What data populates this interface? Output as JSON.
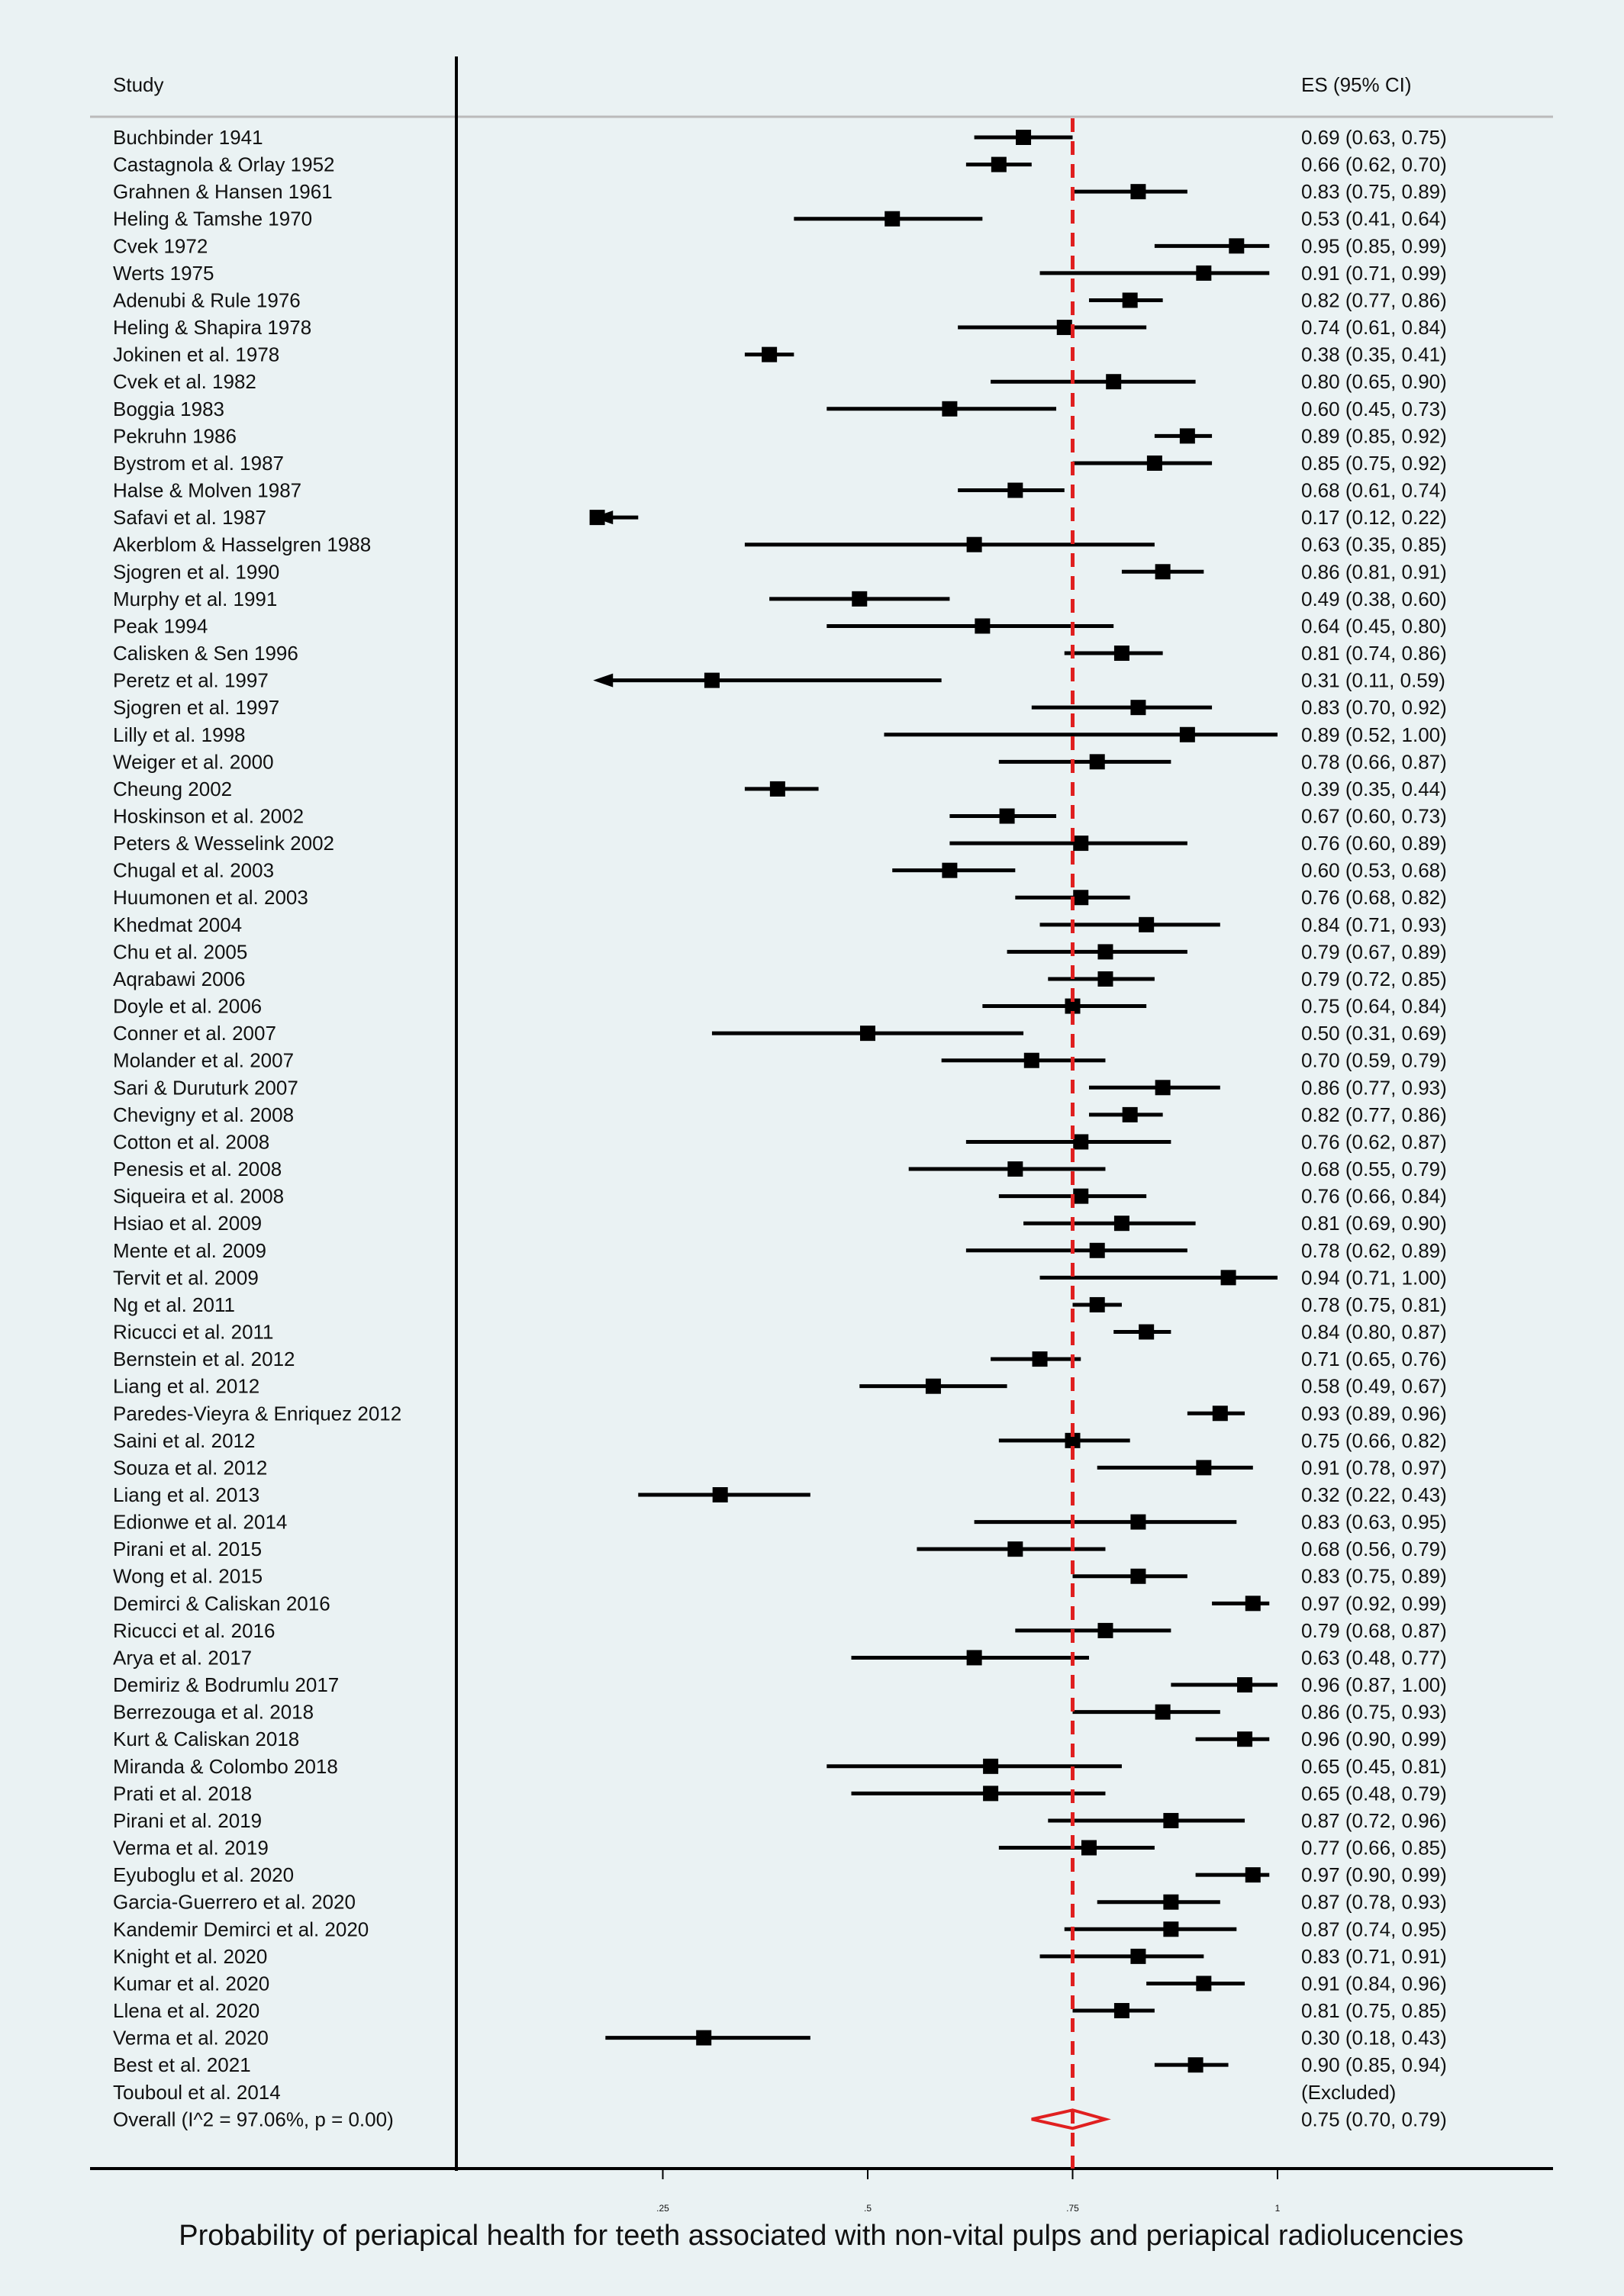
{
  "chart_data": {
    "type": "forest",
    "column_headers": {
      "study": "Study",
      "es": "ES (95% CI)"
    },
    "xlabel": "Probability of periapical health for teeth associated with non-vital pulps and periapical radiolucencies",
    "xlim": [
      0,
      1
    ],
    "ticks": [
      {
        "value": 0.25,
        "label": ".25"
      },
      {
        "value": 0.5,
        "label": ".5"
      },
      {
        "value": 0.75,
        "label": ".75"
      },
      {
        "value": 1,
        "label": "1"
      }
    ],
    "reference_line": {
      "value": 0.75,
      "style": "dashed",
      "color": "#e02020"
    },
    "colors": {
      "marker": "#000000",
      "overall": "#e02020",
      "rule": "#bbbbbb",
      "background": "#eaf2f3"
    },
    "studies": [
      {
        "study": "Buchbinder 1941",
        "es": 0.69,
        "lo": 0.63,
        "hi": 0.75,
        "es_text": "0.69 (0.63, 0.75)"
      },
      {
        "study": "Castagnola & Orlay 1952",
        "es": 0.66,
        "lo": 0.62,
        "hi": 0.7,
        "es_text": "0.66 (0.62, 0.70)"
      },
      {
        "study": "Grahnen & Hansen 1961",
        "es": 0.83,
        "lo": 0.75,
        "hi": 0.89,
        "es_text": "0.83 (0.75, 0.89)"
      },
      {
        "study": "Heling & Tamshe 1970",
        "es": 0.53,
        "lo": 0.41,
        "hi": 0.64,
        "es_text": "0.53 (0.41, 0.64)"
      },
      {
        "study": "Cvek 1972",
        "es": 0.95,
        "lo": 0.85,
        "hi": 0.99,
        "es_text": "0.95 (0.85, 0.99)"
      },
      {
        "study": "Werts 1975",
        "es": 0.91,
        "lo": 0.71,
        "hi": 0.99,
        "es_text": "0.91 (0.71, 0.99)"
      },
      {
        "study": "Adenubi & Rule 1976",
        "es": 0.82,
        "lo": 0.77,
        "hi": 0.86,
        "es_text": "0.82 (0.77, 0.86)"
      },
      {
        "study": "Heling & Shapira 1978",
        "es": 0.74,
        "lo": 0.61,
        "hi": 0.84,
        "es_text": "0.74 (0.61, 0.84)"
      },
      {
        "study": "Jokinen et al. 1978",
        "es": 0.38,
        "lo": 0.35,
        "hi": 0.41,
        "es_text": "0.38 (0.35, 0.41)"
      },
      {
        "study": "Cvek et al. 1982",
        "es": 0.8,
        "lo": 0.65,
        "hi": 0.9,
        "es_text": "0.80 (0.65, 0.90)"
      },
      {
        "study": "Boggia 1983",
        "es": 0.6,
        "lo": 0.45,
        "hi": 0.73,
        "es_text": "0.60 (0.45, 0.73)"
      },
      {
        "study": "Pekruhn 1986",
        "es": 0.89,
        "lo": 0.85,
        "hi": 0.92,
        "es_text": "0.89 (0.85, 0.92)"
      },
      {
        "study": "Bystrom et al. 1987",
        "es": 0.85,
        "lo": 0.75,
        "hi": 0.92,
        "es_text": "0.85 (0.75, 0.92)"
      },
      {
        "study": "Halse & Molven 1987",
        "es": 0.68,
        "lo": 0.61,
        "hi": 0.74,
        "es_text": "0.68 (0.61, 0.74)"
      },
      {
        "study": "Safavi et al. 1987",
        "es": 0.17,
        "lo": 0.12,
        "hi": 0.22,
        "es_text": "0.17 (0.12, 0.22)"
      },
      {
        "study": "Akerblom & Hasselgren 1988",
        "es": 0.63,
        "lo": 0.35,
        "hi": 0.85,
        "es_text": "0.63 (0.35, 0.85)"
      },
      {
        "study": "Sjogren et al. 1990",
        "es": 0.86,
        "lo": 0.81,
        "hi": 0.91,
        "es_text": "0.86 (0.81, 0.91)"
      },
      {
        "study": "Murphy et al. 1991",
        "es": 0.49,
        "lo": 0.38,
        "hi": 0.6,
        "es_text": "0.49 (0.38, 0.60)"
      },
      {
        "study": "Peak 1994",
        "es": 0.64,
        "lo": 0.45,
        "hi": 0.8,
        "es_text": "0.64 (0.45, 0.80)"
      },
      {
        "study": "Calisken & Sen 1996",
        "es": 0.81,
        "lo": 0.74,
        "hi": 0.86,
        "es_text": "0.81 (0.74, 0.86)"
      },
      {
        "study": "Peretz et al. 1997",
        "es": 0.31,
        "lo": 0.11,
        "hi": 0.59,
        "es_text": "0.31 (0.11, 0.59)",
        "truncated_left": true
      },
      {
        "study": "Sjogren et al. 1997",
        "es": 0.83,
        "lo": 0.7,
        "hi": 0.92,
        "es_text": "0.83 (0.70, 0.92)"
      },
      {
        "study": "Lilly et al. 1998",
        "es": 0.89,
        "lo": 0.52,
        "hi": 1.0,
        "es_text": "0.89 (0.52, 1.00)"
      },
      {
        "study": "Weiger et al. 2000",
        "es": 0.78,
        "lo": 0.66,
        "hi": 0.87,
        "es_text": "0.78 (0.66, 0.87)"
      },
      {
        "study": "Cheung 2002",
        "es": 0.39,
        "lo": 0.35,
        "hi": 0.44,
        "es_text": "0.39 (0.35, 0.44)"
      },
      {
        "study": "Hoskinson et al. 2002",
        "es": 0.67,
        "lo": 0.6,
        "hi": 0.73,
        "es_text": "0.67 (0.60, 0.73)"
      },
      {
        "study": "Peters & Wesselink 2002",
        "es": 0.76,
        "lo": 0.6,
        "hi": 0.89,
        "es_text": "0.76 (0.60, 0.89)"
      },
      {
        "study": "Chugal et al. 2003",
        "es": 0.6,
        "lo": 0.53,
        "hi": 0.68,
        "es_text": "0.60 (0.53, 0.68)"
      },
      {
        "study": "Huumonen et al. 2003",
        "es": 0.76,
        "lo": 0.68,
        "hi": 0.82,
        "es_text": "0.76 (0.68, 0.82)"
      },
      {
        "study": "Khedmat 2004",
        "es": 0.84,
        "lo": 0.71,
        "hi": 0.93,
        "es_text": "0.84 (0.71, 0.93)"
      },
      {
        "study": "Chu et al. 2005",
        "es": 0.79,
        "lo": 0.67,
        "hi": 0.89,
        "es_text": "0.79 (0.67, 0.89)"
      },
      {
        "study": "Aqrabawi 2006",
        "es": 0.79,
        "lo": 0.72,
        "hi": 0.85,
        "es_text": "0.79 (0.72, 0.85)"
      },
      {
        "study": "Doyle et al. 2006",
        "es": 0.75,
        "lo": 0.64,
        "hi": 0.84,
        "es_text": "0.75 (0.64, 0.84)"
      },
      {
        "study": "Conner et al. 2007",
        "es": 0.5,
        "lo": 0.31,
        "hi": 0.69,
        "es_text": "0.50 (0.31, 0.69)"
      },
      {
        "study": "Molander et al. 2007",
        "es": 0.7,
        "lo": 0.59,
        "hi": 0.79,
        "es_text": "0.70 (0.59, 0.79)"
      },
      {
        "study": "Sari & Duruturk 2007",
        "es": 0.86,
        "lo": 0.77,
        "hi": 0.93,
        "es_text": "0.86 (0.77, 0.93)"
      },
      {
        "study": "Chevigny et al. 2008",
        "es": 0.82,
        "lo": 0.77,
        "hi": 0.86,
        "es_text": "0.82 (0.77, 0.86)"
      },
      {
        "study": "Cotton et al. 2008",
        "es": 0.76,
        "lo": 0.62,
        "hi": 0.87,
        "es_text": "0.76 (0.62, 0.87)"
      },
      {
        "study": "Penesis et al. 2008",
        "es": 0.68,
        "lo": 0.55,
        "hi": 0.79,
        "es_text": "0.68 (0.55, 0.79)"
      },
      {
        "study": "Siqueira et al. 2008",
        "es": 0.76,
        "lo": 0.66,
        "hi": 0.84,
        "es_text": "0.76 (0.66, 0.84)"
      },
      {
        "study": "Hsiao et al. 2009",
        "es": 0.81,
        "lo": 0.69,
        "hi": 0.9,
        "es_text": "0.81 (0.69, 0.90)"
      },
      {
        "study": "Mente et al. 2009",
        "es": 0.78,
        "lo": 0.62,
        "hi": 0.89,
        "es_text": "0.78 (0.62, 0.89)"
      },
      {
        "study": "Tervit et al. 2009",
        "es": 0.94,
        "lo": 0.71,
        "hi": 1.0,
        "es_text": "0.94 (0.71, 1.00)"
      },
      {
        "study": "Ng et al. 2011",
        "es": 0.78,
        "lo": 0.75,
        "hi": 0.81,
        "es_text": "0.78 (0.75, 0.81)"
      },
      {
        "study": "Ricucci et al. 2011",
        "es": 0.84,
        "lo": 0.8,
        "hi": 0.87,
        "es_text": "0.84 (0.80, 0.87)"
      },
      {
        "study": "Bernstein et al. 2012",
        "es": 0.71,
        "lo": 0.65,
        "hi": 0.76,
        "es_text": "0.71 (0.65, 0.76)"
      },
      {
        "study": "Liang et al. 2012",
        "es": 0.58,
        "lo": 0.49,
        "hi": 0.67,
        "es_text": "0.58 (0.49, 0.67)"
      },
      {
        "study": "Paredes-Vieyra & Enriquez 2012",
        "es": 0.93,
        "lo": 0.89,
        "hi": 0.96,
        "es_text": "0.93 (0.89, 0.96)"
      },
      {
        "study": "Saini et al. 2012",
        "es": 0.75,
        "lo": 0.66,
        "hi": 0.82,
        "es_text": "0.75 (0.66, 0.82)"
      },
      {
        "study": "Souza et al. 2012",
        "es": 0.91,
        "lo": 0.78,
        "hi": 0.97,
        "es_text": "0.91 (0.78, 0.97)"
      },
      {
        "study": "Liang et al. 2013",
        "es": 0.32,
        "lo": 0.22,
        "hi": 0.43,
        "es_text": "0.32 (0.22, 0.43)"
      },
      {
        "study": "Edionwe et al. 2014",
        "es": 0.83,
        "lo": 0.63,
        "hi": 0.95,
        "es_text": "0.83 (0.63, 0.95)"
      },
      {
        "study": "Pirani et al. 2015",
        "es": 0.68,
        "lo": 0.56,
        "hi": 0.79,
        "es_text": "0.68 (0.56, 0.79)"
      },
      {
        "study": "Wong et al. 2015",
        "es": 0.83,
        "lo": 0.75,
        "hi": 0.89,
        "es_text": "0.83 (0.75, 0.89)"
      },
      {
        "study": "Demirci & Caliskan 2016",
        "es": 0.97,
        "lo": 0.92,
        "hi": 0.99,
        "es_text": "0.97 (0.92, 0.99)"
      },
      {
        "study": "Ricucci et al. 2016",
        "es": 0.79,
        "lo": 0.68,
        "hi": 0.87,
        "es_text": "0.79 (0.68, 0.87)"
      },
      {
        "study": "Arya et al. 2017",
        "es": 0.63,
        "lo": 0.48,
        "hi": 0.77,
        "es_text": "0.63 (0.48, 0.77)"
      },
      {
        "study": "Demiriz & Bodrumlu 2017",
        "es": 0.96,
        "lo": 0.87,
        "hi": 1.0,
        "es_text": "0.96 (0.87, 1.00)"
      },
      {
        "study": "Berrezouga et al. 2018",
        "es": 0.86,
        "lo": 0.75,
        "hi": 0.93,
        "es_text": "0.86 (0.75, 0.93)"
      },
      {
        "study": "Kurt & Caliskan 2018",
        "es": 0.96,
        "lo": 0.9,
        "hi": 0.99,
        "es_text": "0.96 (0.90, 0.99)"
      },
      {
        "study": "Miranda & Colombo 2018",
        "es": 0.65,
        "lo": 0.45,
        "hi": 0.81,
        "es_text": "0.65 (0.45, 0.81)"
      },
      {
        "study": "Prati et al. 2018",
        "es": 0.65,
        "lo": 0.48,
        "hi": 0.79,
        "es_text": "0.65 (0.48, 0.79)"
      },
      {
        "study": "Pirani et al. 2019",
        "es": 0.87,
        "lo": 0.72,
        "hi": 0.96,
        "es_text": "0.87 (0.72, 0.96)"
      },
      {
        "study": "Verma et al. 2019",
        "es": 0.77,
        "lo": 0.66,
        "hi": 0.85,
        "es_text": "0.77 (0.66, 0.85)"
      },
      {
        "study": "Eyuboglu et al. 2020",
        "es": 0.97,
        "lo": 0.9,
        "hi": 0.99,
        "es_text": "0.97 (0.90, 0.99)"
      },
      {
        "study": "Garcia-Guerrero et al. 2020",
        "es": 0.87,
        "lo": 0.78,
        "hi": 0.93,
        "es_text": "0.87 (0.78, 0.93)"
      },
      {
        "study": "Kandemir Demirci et al. 2020",
        "es": 0.87,
        "lo": 0.74,
        "hi": 0.95,
        "es_text": "0.87 (0.74, 0.95)"
      },
      {
        "study": "Knight et al. 2020",
        "es": 0.83,
        "lo": 0.71,
        "hi": 0.91,
        "es_text": "0.83 (0.71, 0.91)"
      },
      {
        "study": "Kumar et al. 2020",
        "es": 0.91,
        "lo": 0.84,
        "hi": 0.96,
        "es_text": "0.91 (0.84, 0.96)"
      },
      {
        "study": "Llena et al. 2020",
        "es": 0.81,
        "lo": 0.75,
        "hi": 0.85,
        "es_text": "0.81 (0.75, 0.85)"
      },
      {
        "study": "Verma et al. 2020",
        "es": 0.3,
        "lo": 0.18,
        "hi": 0.43,
        "es_text": "0.30 (0.18, 0.43)"
      },
      {
        "study": "Best et al. 2021",
        "es": 0.9,
        "lo": 0.85,
        "hi": 0.94,
        "es_text": "0.90 (0.85, 0.94)"
      },
      {
        "study": "Touboul et al. 2014",
        "es": null,
        "lo": null,
        "hi": null,
        "es_text": "(Excluded)"
      }
    ],
    "overall": {
      "label": "Overall  (I^2 = 97.06%, p = 0.00)",
      "es": 0.75,
      "lo": 0.7,
      "hi": 0.79,
      "es_text": "0.75 (0.70, 0.79)"
    }
  }
}
